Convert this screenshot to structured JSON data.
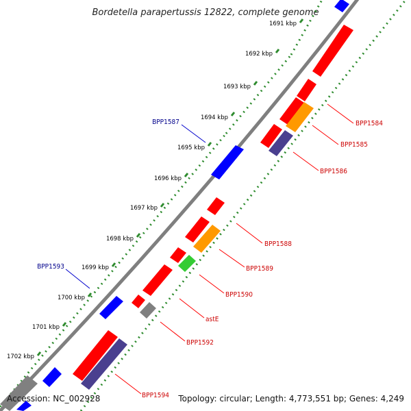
{
  "title": "Bordetella parapertussis 12822, complete genome",
  "footer": {
    "accession": "Accession: NC_002928",
    "stats": "Topology: circular; Length: 4,773,551 bp; Genes: 4,249"
  },
  "ticks": [
    {
      "label": "1691 kbp"
    },
    {
      "label": "1692 kbp"
    },
    {
      "label": "1693 kbp"
    },
    {
      "label": "1694 kbp"
    },
    {
      "label": "1695 kbp"
    },
    {
      "label": "1696 kbp"
    },
    {
      "label": "1697 kbp"
    },
    {
      "label": "1698 kbp"
    },
    {
      "label": "1699 kbp"
    },
    {
      "label": "1700 kbp"
    },
    {
      "label": "1701 kbp"
    },
    {
      "label": "1702 kbp"
    }
  ],
  "gene_labels": {
    "outer": [
      {
        "name": "BPP1587",
        "color": "#00008b"
      },
      {
        "name": "BPP1593",
        "color": "#00008b"
      }
    ],
    "inner": [
      {
        "name": "BPP1584",
        "color": "#cc0000"
      },
      {
        "name": "BPP1585",
        "color": "#cc0000"
      },
      {
        "name": "BPP1586",
        "color": "#cc0000"
      },
      {
        "name": "BPP1588",
        "color": "#cc0000"
      },
      {
        "name": "BPP1589",
        "color": "#cc0000"
      },
      {
        "name": "BPP1590",
        "color": "#cc0000"
      },
      {
        "name": "astE",
        "color": "#cc0000"
      },
      {
        "name": "BPP1592",
        "color": "#cc0000"
      },
      {
        "name": "BPP1594",
        "color": "#cc0000"
      }
    ]
  },
  "colors": {
    "forward_cds": "#0000ff",
    "reverse_cds": "#ff0000",
    "orange_feature": "#ff9900",
    "green_feature": "#33cc33",
    "gray_feature": "#808080",
    "navy_feature": "#4a3f8f",
    "backbone": "#808080",
    "outer_dots": "#2e8b2e",
    "inner_dots": "#2e8b2e"
  }
}
